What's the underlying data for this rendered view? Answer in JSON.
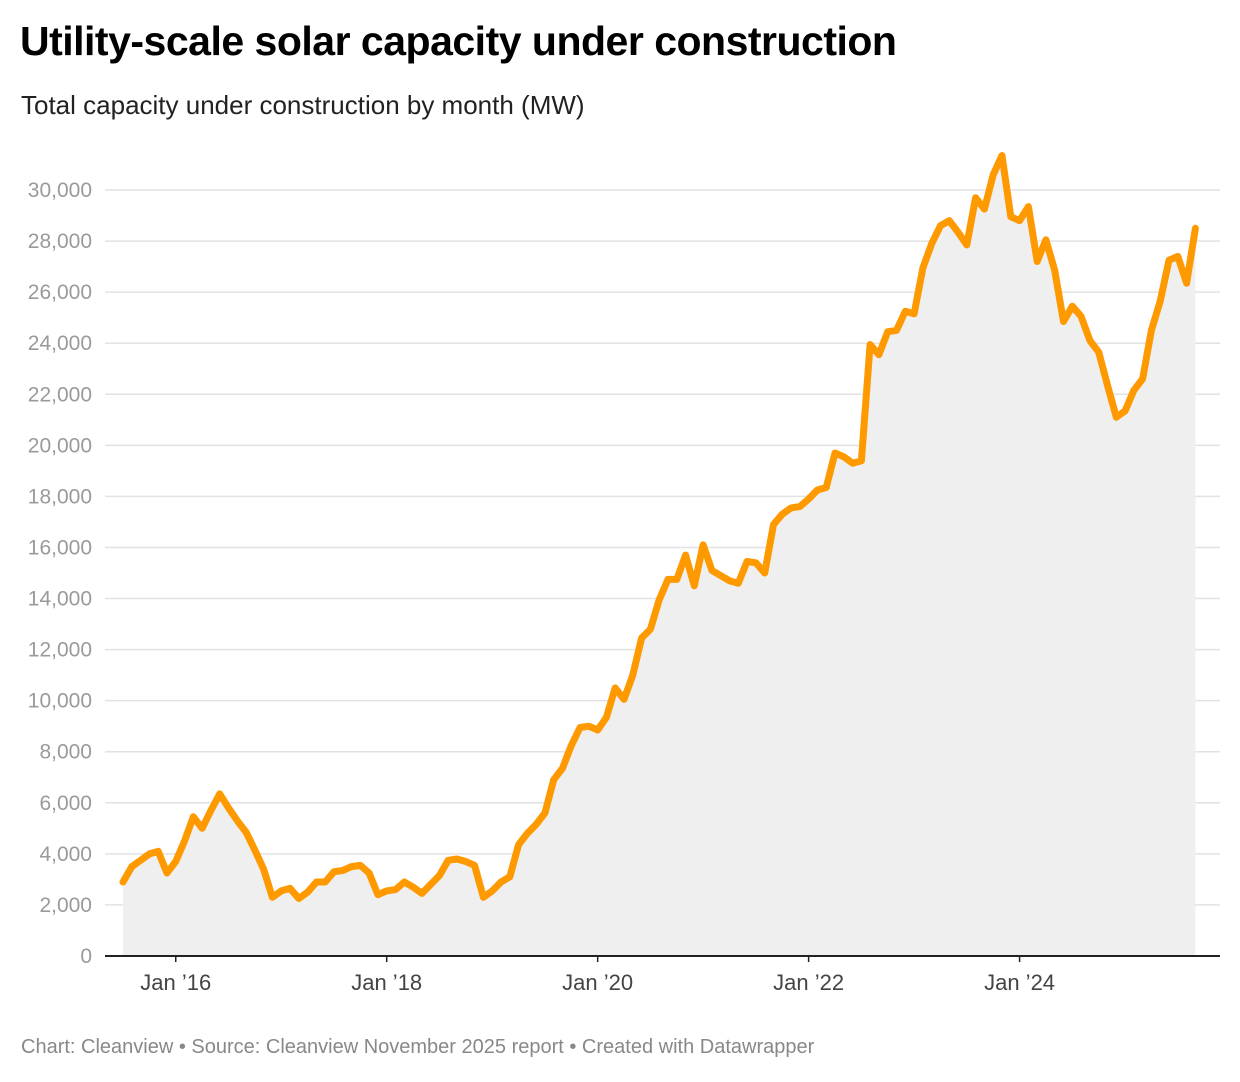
{
  "chart_data": {
    "type": "area",
    "title": "Utility-scale solar capacity under construction",
    "subtitle": "Total capacity under construction by month (MW)",
    "footer": "Chart: Cleanview • Source: Cleanview November 2025 report • Created with Datawrapper",
    "xlabel": "",
    "ylabel": "",
    "ylim": [
      0,
      30000
    ],
    "yticks": [
      0,
      2000,
      4000,
      6000,
      8000,
      10000,
      12000,
      14000,
      16000,
      18000,
      20000,
      22000,
      24000,
      26000,
      28000,
      30000
    ],
    "ytick_labels": [
      "0",
      "2,000",
      "4,000",
      "6,000",
      "8,000",
      "10,000",
      "12,000",
      "14,000",
      "16,000",
      "18,000",
      "20,000",
      "22,000",
      "24,000",
      "26,000",
      "28,000",
      "30,000"
    ],
    "xticks": [
      {
        "label": "Jan ’16",
        "month_index": 6
      },
      {
        "label": "Jan ’18",
        "month_index": 30
      },
      {
        "label": "Jan ’20",
        "month_index": 54
      },
      {
        "label": "Jan ’22",
        "month_index": 78
      },
      {
        "label": "Jan ’24",
        "month_index": 102
      }
    ],
    "start_month": "2015-07",
    "grid": true,
    "line_color": "#ff9900",
    "fill_color": "#efefef",
    "series": [
      {
        "name": "Capacity under construction (MW)",
        "values": [
          2900,
          3500,
          3750,
          4000,
          4100,
          3250,
          3700,
          4500,
          5450,
          5000,
          5700,
          6350,
          5800,
          5300,
          4850,
          4150,
          3400,
          2300,
          2550,
          2650,
          2250,
          2500,
          2900,
          2900,
          3300,
          3350,
          3500,
          3550,
          3250,
          2400,
          2550,
          2600,
          2900,
          2700,
          2450,
          2800,
          3150,
          3750,
          3800,
          3700,
          3550,
          2300,
          2550,
          2900,
          3100,
          4350,
          4800,
          5150,
          5600,
          6900,
          7350,
          8250,
          8950,
          9000,
          8850,
          9350,
          10500,
          10050,
          11000,
          12450,
          12800,
          13950,
          14750,
          14750,
          15700,
          14500,
          16100,
          15100,
          14900,
          14700,
          14600,
          15450,
          15400,
          15000,
          16900,
          17300,
          17550,
          17600,
          17900,
          18250,
          18350,
          19700,
          19550,
          19300,
          19400,
          23950,
          23550,
          24450,
          24500,
          25250,
          25150,
          26950,
          27900,
          28600,
          28800,
          28350,
          27850,
          29700,
          29250,
          30600,
          31350,
          28950,
          28800,
          29350,
          27200,
          28050,
          26850,
          24850,
          25450,
          25050,
          24100,
          23650,
          22350,
          21100,
          21350,
          22150,
          22600,
          24500,
          25650,
          27250,
          27400,
          26350,
          28500
        ]
      }
    ]
  }
}
